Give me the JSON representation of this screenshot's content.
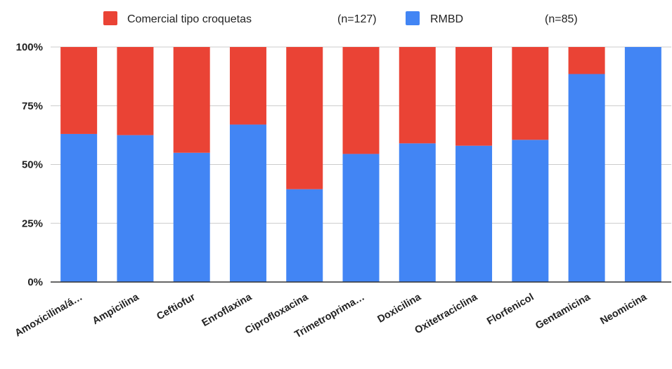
{
  "chart_data": {
    "type": "bar",
    "stacked": true,
    "categories": [
      "Amoxicilina/á…",
      "Ampicilina",
      "Ceftiofur",
      "Enroflaxina",
      "Ciprofloxacina",
      "Trimetroprima…",
      "Doxicilina",
      "Oxitetraciclina",
      "Florfenicol",
      "Gentamicina",
      "Neomicina"
    ],
    "series": [
      {
        "name": "RMBD",
        "n_label": "(n=85)",
        "color": "#4285f4",
        "values": [
          63,
          62.5,
          55,
          67,
          39.5,
          54.5,
          59,
          58,
          60.5,
          88.5,
          100
        ]
      },
      {
        "name": "Comercial tipo croquetas",
        "n_label": "(n=127)",
        "color": "#ea4335",
        "values": [
          37,
          37.5,
          45,
          33,
          60.5,
          45.5,
          41,
          42,
          39.5,
          11.5,
          0
        ]
      }
    ],
    "ylim": [
      0,
      100
    ],
    "yticks": [
      "0%",
      "25%",
      "50%",
      "75%",
      "100%"
    ],
    "ytick_values": [
      0,
      25,
      50,
      75,
      100
    ],
    "legend_position": "top",
    "grid": true
  }
}
